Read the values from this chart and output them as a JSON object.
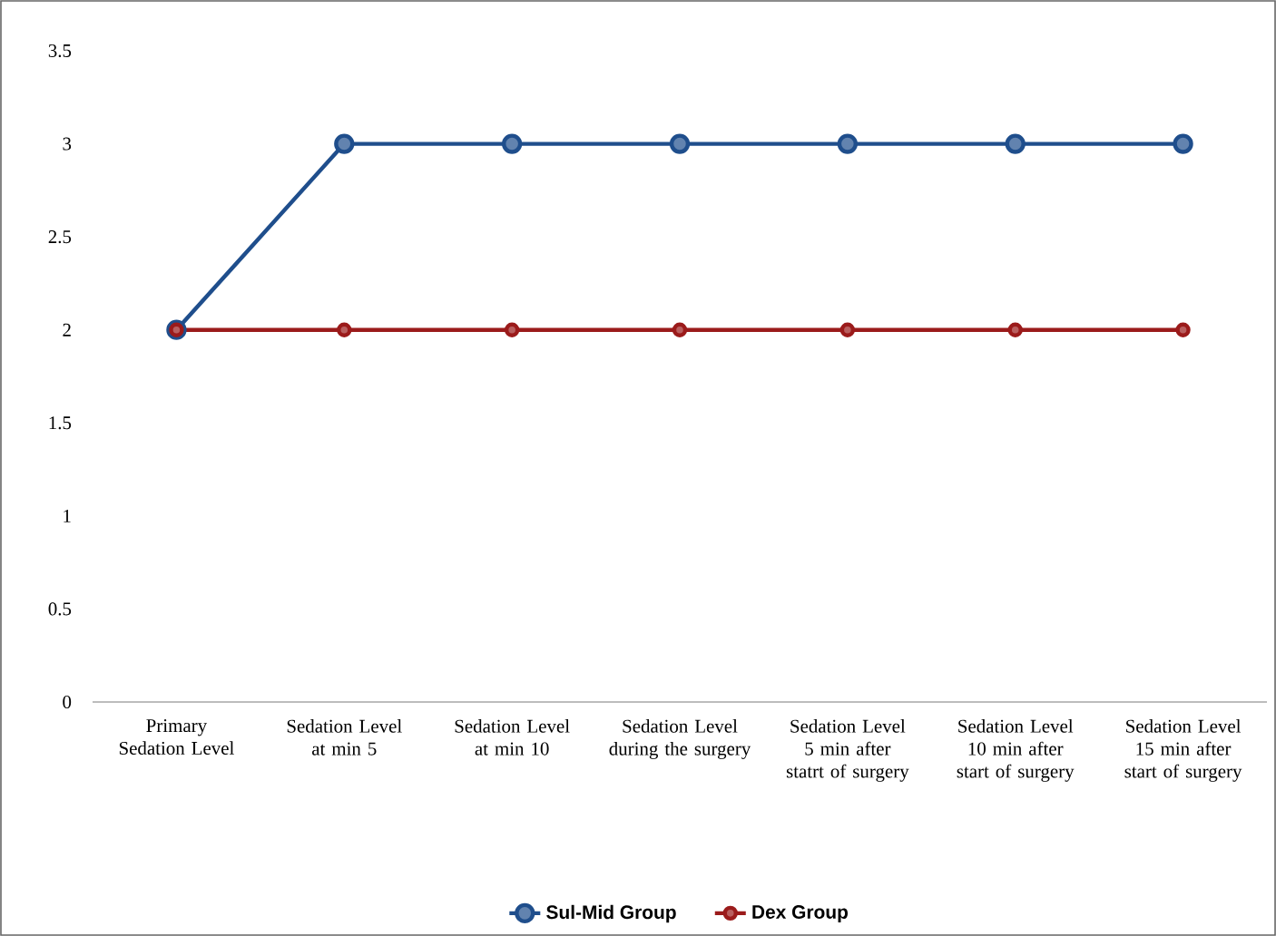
{
  "chart_data": {
    "type": "line",
    "categories": [
      "Primary Sedation Level",
      "Sedation Level at min 5",
      "Sedation Level at min 10",
      "Sedation Level during the surgery",
      "Sedation Level 5 min after statrt of surgery",
      "Sedation Level 10 min after start of surgery",
      "Sedation Level 15 min after start of surgery"
    ],
    "series": [
      {
        "name": "Sul-Mid Group",
        "color": "#1f4e8c",
        "values": [
          2,
          3,
          3,
          3,
          3,
          3,
          3
        ]
      },
      {
        "name": "Dex Group",
        "color": "#9b1b1b",
        "values": [
          2,
          2,
          2,
          2,
          2,
          2,
          2
        ]
      }
    ],
    "ylim": [
      0,
      3.5
    ],
    "yticks": [
      0,
      0.5,
      1,
      1.5,
      2,
      2.5,
      3,
      3.5
    ],
    "legend": "bottom",
    "marker": "circle",
    "line_style": "solid"
  }
}
